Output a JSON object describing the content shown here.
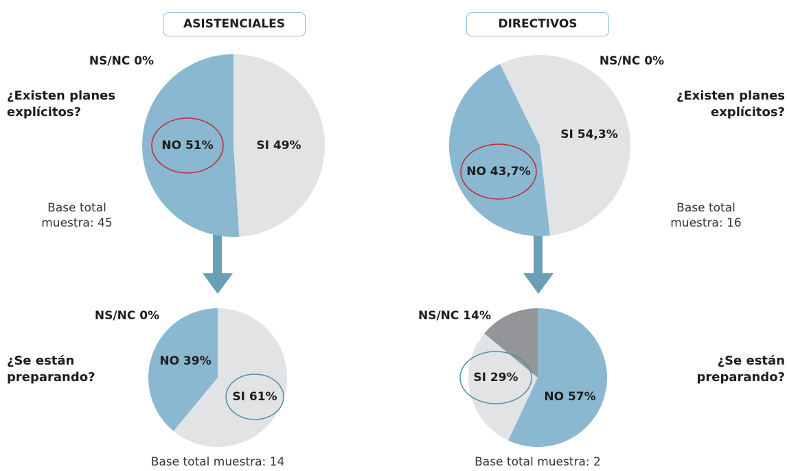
{
  "headers": [
    "ASISTENCIALES",
    "DIRECTIVOS"
  ],
  "chart_data": [
    {
      "type": "pie",
      "title": "¿Existen planes explícitos?",
      "note": "Base total muestra: 45",
      "categories": [
        "SI",
        "NO",
        "NS/NC"
      ],
      "values": [
        49,
        51,
        0
      ],
      "value_labels": [
        "SI 49%",
        "NO 51%",
        "NS/NC 0%"
      ],
      "colors": [
        "#e2e3e5",
        "#8ab8d0",
        "#939598"
      ]
    },
    {
      "type": "pie",
      "title": "¿Existen planes explícitos?",
      "note": "Base total muestra: 16",
      "categories": [
        "SI",
        "NO",
        "NS/NC"
      ],
      "values": [
        54.3,
        43.7,
        0
      ],
      "value_labels": [
        "SI 54,3%",
        "NO 43,7%",
        "NS/NC 0%"
      ],
      "colors": [
        "#e2e3e5",
        "#8ab8d0",
        "#939598"
      ]
    },
    {
      "type": "pie",
      "title": "¿Se están preparando?",
      "note": "Base total muestra: 14",
      "categories": [
        "SI",
        "NO",
        "NS/NC"
      ],
      "values": [
        61,
        39,
        0
      ],
      "value_labels": [
        "SI 61%",
        "NO 39%",
        "NS/NC 0%"
      ],
      "colors": [
        "#e2e3e5",
        "#8ab8d0",
        "#939598"
      ]
    },
    {
      "type": "pie",
      "title": "¿Se están preparando?",
      "note": "Base total muestra: 2",
      "categories": [
        "NO",
        "SI",
        "NS/NC"
      ],
      "values": [
        57,
        29,
        14
      ],
      "value_labels": [
        "NO 57%",
        "SI 29%",
        "NS/NC 14%"
      ],
      "colors": [
        "#8ab8d0",
        "#e2e3e5",
        "#939598"
      ]
    }
  ]
}
